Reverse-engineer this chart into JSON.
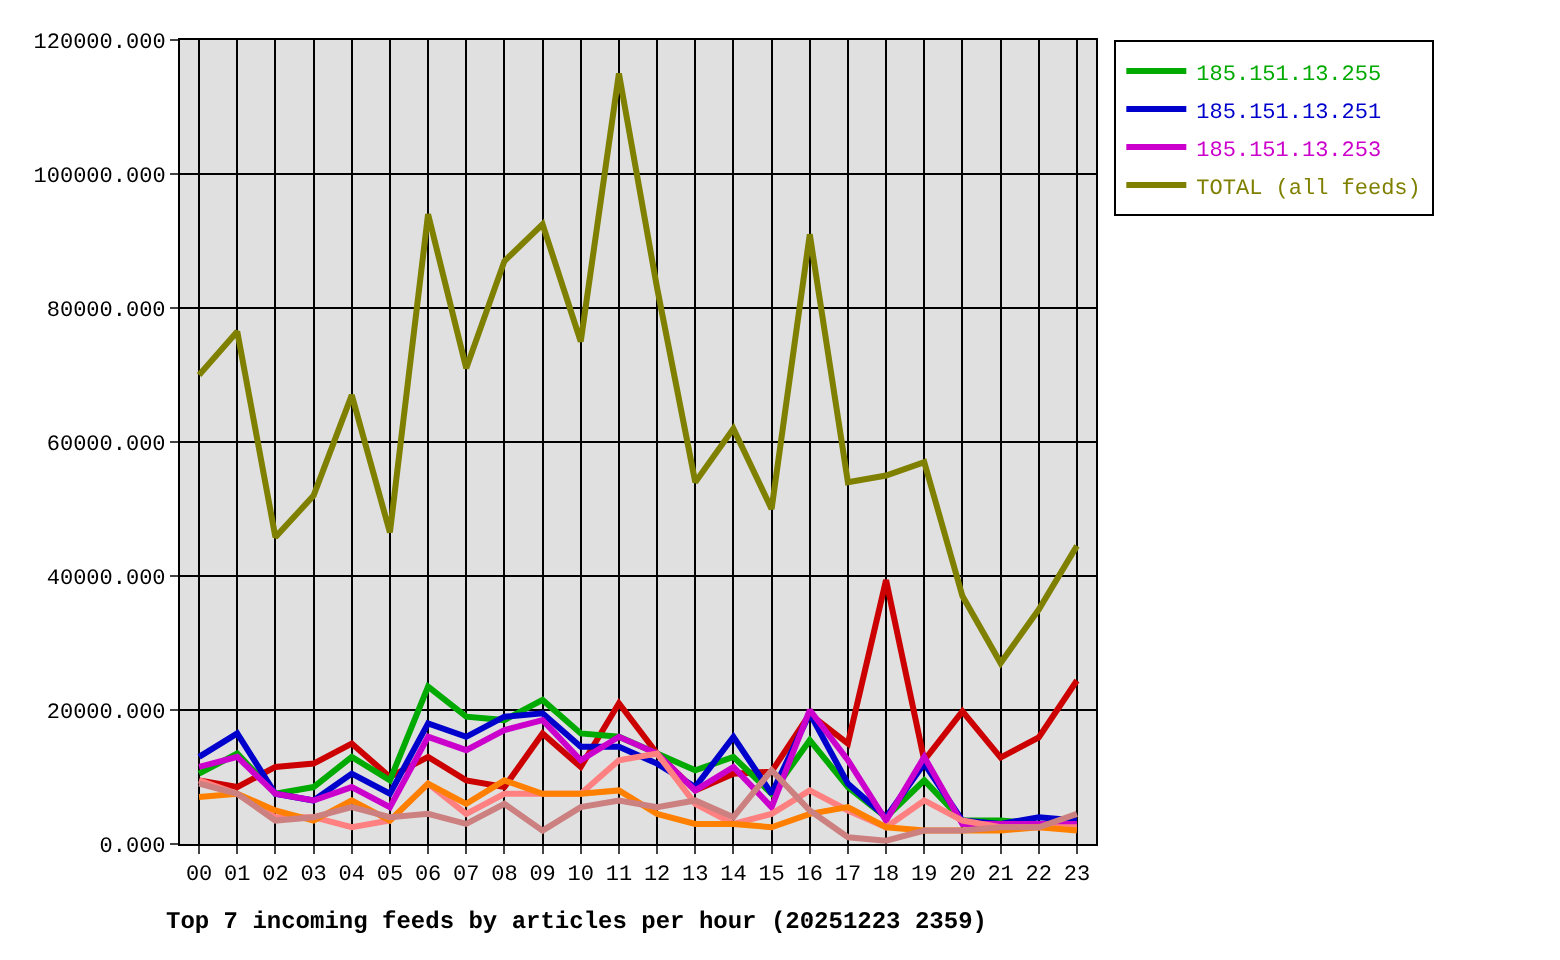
{
  "chart_data": {
    "type": "line",
    "title": "Top 7 incoming feeds by articles per hour (20251223 2359)",
    "categories": [
      "00",
      "01",
      "02",
      "03",
      "04",
      "05",
      "06",
      "07",
      "08",
      "09",
      "10",
      "11",
      "12",
      "13",
      "14",
      "15",
      "16",
      "17",
      "18",
      "19",
      "20",
      "21",
      "22",
      "23"
    ],
    "series": [
      {
        "color": "#cc0000",
        "values": [
          9500,
          8500,
          11500,
          12000,
          15000,
          10000,
          13000,
          9500,
          8500,
          16500,
          11500,
          21000,
          13500,
          8000,
          10500,
          10800,
          19400,
          15000,
          39400,
          12500,
          19800,
          12900,
          15900,
          24400
        ]
      },
      {
        "name": "185.151.13.255",
        "color": "#00aa00",
        "values": [
          10500,
          13500,
          7500,
          8500,
          13000,
          9500,
          23500,
          19000,
          18500,
          21500,
          16500,
          16000,
          13500,
          11000,
          13000,
          7500,
          15500,
          8500,
          4000,
          9500,
          3500,
          3500,
          3000,
          3000
        ]
      },
      {
        "name": "185.151.13.251",
        "color": "#0000cc",
        "values": [
          13000,
          16500,
          7500,
          6500,
          10500,
          7500,
          18000,
          16000,
          19000,
          19500,
          14500,
          14500,
          12000,
          8500,
          16000,
          7500,
          19500,
          9000,
          4000,
          12000,
          3500,
          3000,
          4000,
          3500
        ]
      },
      {
        "name": "185.151.13.253",
        "color": "#cc00cc",
        "values": [
          11500,
          13000,
          7500,
          6500,
          8500,
          5500,
          16000,
          14000,
          17000,
          18500,
          12500,
          16000,
          13500,
          8000,
          11500,
          5500,
          20000,
          12500,
          3500,
          13000,
          3000,
          3000,
          3000,
          3000
        ]
      },
      {
        "color": "#ff8080",
        "values": [
          9500,
          7500,
          4000,
          4000,
          2500,
          3500,
          9000,
          4500,
          7500,
          7500,
          7500,
          12500,
          13500,
          6000,
          3000,
          4500,
          8000,
          5000,
          2500,
          6500,
          3500,
          2500,
          2500,
          2500
        ]
      },
      {
        "color": "#ff8000",
        "values": [
          7000,
          7500,
          5000,
          3500,
          6500,
          3500,
          9000,
          6000,
          9500,
          7500,
          7500,
          8000,
          4500,
          3000,
          3000,
          2500,
          4500,
          5500,
          2500,
          2000,
          2000,
          2000,
          2500,
          2000
        ]
      },
      {
        "color": "#cc8080",
        "values": [
          9000,
          7500,
          3500,
          4000,
          5500,
          4000,
          4500,
          3000,
          6000,
          2000,
          5500,
          6500,
          5500,
          6500,
          4000,
          11000,
          5000,
          1000,
          500,
          2000,
          2000,
          2500,
          2500,
          4500
        ]
      },
      {
        "name": "TOTAL (all feeds)",
        "color": "#808000",
        "values": [
          70000,
          76500,
          45800,
          52000,
          67000,
          46500,
          94000,
          71000,
          87000,
          92500,
          75000,
          115000,
          83000,
          54000,
          62000,
          50000,
          91000,
          54000,
          55000,
          57000,
          37000,
          27000,
          35000,
          44500
        ]
      }
    ],
    "ylim": [
      0,
      120000
    ],
    "yticks": [
      {
        "value": 0,
        "label": "0.000"
      },
      {
        "value": 20000,
        "label": "20000.000"
      },
      {
        "value": 40000,
        "label": "40000.000"
      },
      {
        "value": 60000,
        "label": "60000.000"
      },
      {
        "value": 80000,
        "label": "80000.000"
      },
      {
        "value": 100000,
        "label": "100000.000"
      },
      {
        "value": 120000,
        "label": "120000.000"
      }
    ],
    "grid": true,
    "legend": "top right"
  }
}
